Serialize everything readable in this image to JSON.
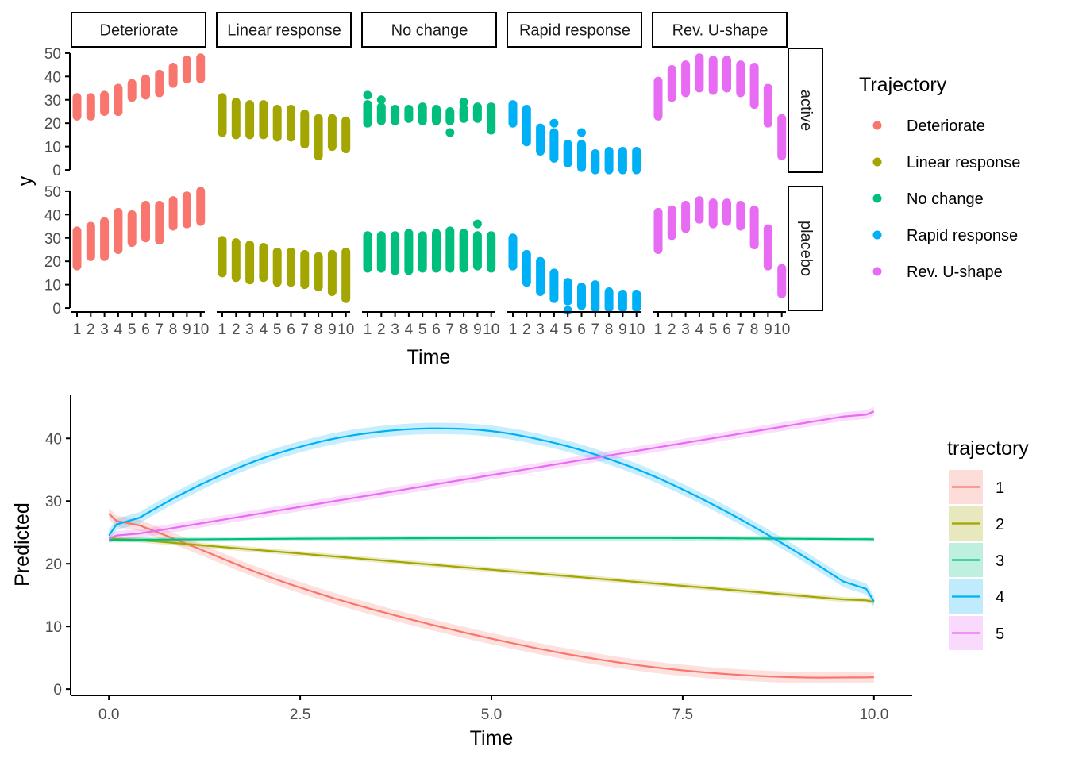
{
  "chart_data": [
    {
      "type": "scatter",
      "facet_columns": [
        "Deteriorate",
        "Linear response",
        "No change",
        "Rapid response",
        "Rev. U-shape"
      ],
      "facet_rows": [
        "active",
        "placebo"
      ],
      "xlabel": "Time",
      "ylabel": "y",
      "x_ticks": [
        "1",
        "2",
        "3",
        "4",
        "5",
        "6",
        "7",
        "8",
        "9",
        "10"
      ],
      "y_ticks": [
        0,
        10,
        20,
        30,
        40,
        50
      ],
      "ylim": [
        -1,
        52
      ],
      "legend": {
        "title": "Trajectory",
        "position": "right",
        "entries": [
          {
            "label": "Deteriorate",
            "color": "#F8766D"
          },
          {
            "label": "Linear response",
            "color": "#A3A500"
          },
          {
            "label": "No change",
            "color": "#00BF7D"
          },
          {
            "label": "Rapid response",
            "color": "#00B0F6"
          },
          {
            "label": "Rev. U-shape",
            "color": "#E76BF3"
          }
        ]
      },
      "series": [
        {
          "name": "Deteriorate",
          "color": "#F8766D",
          "x": [
            1,
            2,
            3,
            4,
            5,
            6,
            7,
            8,
            9,
            10
          ],
          "active": {
            "min": [
              23,
              23,
              25,
              25,
              31,
              32,
              33,
              37,
              39,
              39
            ],
            "max": [
              31,
              31,
              32,
              35,
              37,
              39,
              41,
              44,
              47,
              48
            ],
            "outliers": [
              [
                4,
                25
              ]
            ]
          },
          "placebo": {
            "min": [
              18,
              22,
              22,
              25,
              28,
              30,
              29,
              35,
              36,
              37
            ],
            "max": [
              33,
              35,
              37,
              41,
              40,
              44,
              44,
              46,
              48,
              50
            ]
          }
        },
        {
          "name": "Linear response",
          "color": "#A3A500",
          "x": [
            1,
            2,
            3,
            4,
            5,
            6,
            7,
            8,
            9,
            10
          ],
          "active": {
            "min": [
              16,
              15,
              15,
              15,
              14,
              14,
              11,
              6,
              10,
              9
            ],
            "max": [
              31,
              29,
              28,
              28,
              26,
              26,
              24,
              22,
              22,
              21
            ],
            "outliers": [
              [
                8,
                6
              ]
            ]
          },
          "placebo": {
            "min": [
              15,
              13,
              12,
              13,
              11,
              11,
              10,
              9,
              7,
              4
            ],
            "max": [
              29,
              28,
              27,
              26,
              24,
              24,
              23,
              22,
              23,
              24
            ]
          }
        },
        {
          "name": "No change",
          "color": "#00BF7D",
          "x": [
            1,
            2,
            3,
            4,
            5,
            6,
            7,
            8,
            9,
            10
          ],
          "active": {
            "min": [
              20,
              21,
              21,
              22,
              21,
              21,
              21,
              22,
              22,
              17
            ],
            "max": [
              28,
              27,
              26,
              26,
              27,
              26,
              25,
              26,
              27,
              27
            ],
            "outliers": [
              [
                1,
                32
              ],
              [
                2,
                30
              ],
              [
                7,
                16
              ],
              [
                8,
                29
              ]
            ]
          },
          "placebo": {
            "min": [
              17,
              17,
              16,
              16,
              17,
              17,
              17,
              17,
              18,
              17
            ],
            "max": [
              31,
              31,
              31,
              32,
              31,
              32,
              33,
              32,
              31,
              31
            ],
            "outliers": [
              [
                9,
                36
              ]
            ]
          }
        },
        {
          "name": "Rapid response",
          "color": "#00B0F6",
          "x": [
            1,
            2,
            3,
            4,
            5,
            6,
            7,
            8,
            9,
            10
          ],
          "active": {
            "min": [
              20,
              12,
              8,
              5,
              3,
              1,
              0,
              0,
              0,
              0
            ],
            "max": [
              28,
              26,
              18,
              16,
              11,
              11,
              7,
              8,
              8,
              8
            ],
            "outliers": [
              [
                4,
                20
              ],
              [
                6,
                16
              ]
            ]
          },
          "placebo": {
            "min": [
              18,
              11,
              7,
              4,
              3,
              1,
              0,
              0,
              0,
              0
            ],
            "max": [
              30,
              23,
              20,
              15,
              11,
              9,
              10,
              7,
              6,
              6
            ],
            "outliers": [
              [
                5,
                -1
              ]
            ]
          }
        },
        {
          "name": "Rev. U-shape",
          "color": "#E76BF3",
          "x": [
            1,
            2,
            3,
            4,
            5,
            6,
            7,
            8,
            9,
            10
          ],
          "active": {
            "min": [
              23,
              31,
              33,
              35,
              34,
              35,
              33,
              28,
              20,
              6
            ],
            "max": [
              38,
              43,
              45,
              48,
              47,
              47,
              45,
              44,
              35,
              22
            ]
          },
          "placebo": {
            "min": [
              25,
              31,
              34,
              38,
              36,
              37,
              35,
              27,
              18,
              6
            ],
            "max": [
              41,
              42,
              44,
              46,
              45,
              45,
              44,
              42,
              34,
              17
            ]
          }
        }
      ]
    },
    {
      "type": "line",
      "xlabel": "Time",
      "ylabel": "Predicted",
      "xlim": [
        -0.5,
        10.5
      ],
      "ylim": [
        -1,
        47
      ],
      "x_ticks": [
        0,
        2.5,
        5,
        7.5,
        10
      ],
      "x_tick_labels": [
        "0.0",
        "2.5",
        "5.0",
        "7.5",
        "10.0"
      ],
      "y_ticks": [
        0,
        10,
        20,
        30,
        40
      ],
      "ribbons": true,
      "legend": {
        "title": "trajectory",
        "position": "right",
        "entries": [
          {
            "label": "1",
            "color": "#F8766D"
          },
          {
            "label": "2",
            "color": "#A3A500"
          },
          {
            "label": "3",
            "color": "#00BF7D"
          },
          {
            "label": "4",
            "color": "#00B0F6"
          },
          {
            "label": "5",
            "color": "#E76BF3"
          }
        ]
      },
      "series": [
        {
          "name": "1",
          "color": "#F8766D",
          "x": [
            0,
            1,
            2,
            3,
            4,
            5,
            6,
            7,
            8,
            9,
            10
          ],
          "values": [
            28,
            23.3,
            18.2,
            14.2,
            10.9,
            8.0,
            5.5,
            3.6,
            2.4,
            1.8,
            1.9
          ],
          "band": 0.9
        },
        {
          "name": "2",
          "color": "#A3A500",
          "x": [
            0,
            10
          ],
          "values": [
            24.2,
            13.9
          ],
          "band": 0.4
        },
        {
          "name": "3",
          "color": "#00BF7D",
          "x": [
            0,
            2.5,
            5,
            7.5,
            10
          ],
          "values": [
            23.8,
            24.0,
            24.1,
            24.1,
            23.9
          ],
          "band": 0.4
        },
        {
          "name": "4",
          "color": "#00B0F6",
          "x": [
            0,
            1,
            2,
            3,
            4,
            5,
            6,
            7,
            8,
            9,
            10
          ],
          "values": [
            24.5,
            31.6,
            37.0,
            40.3,
            41.7,
            41.4,
            38.9,
            34.8,
            28.9,
            21.9,
            14.0
          ],
          "band": 0.9
        },
        {
          "name": "5",
          "color": "#E76BF3",
          "x": [
            0,
            10
          ],
          "values": [
            24.0,
            44.3
          ],
          "band": 0.7
        }
      ]
    }
  ]
}
